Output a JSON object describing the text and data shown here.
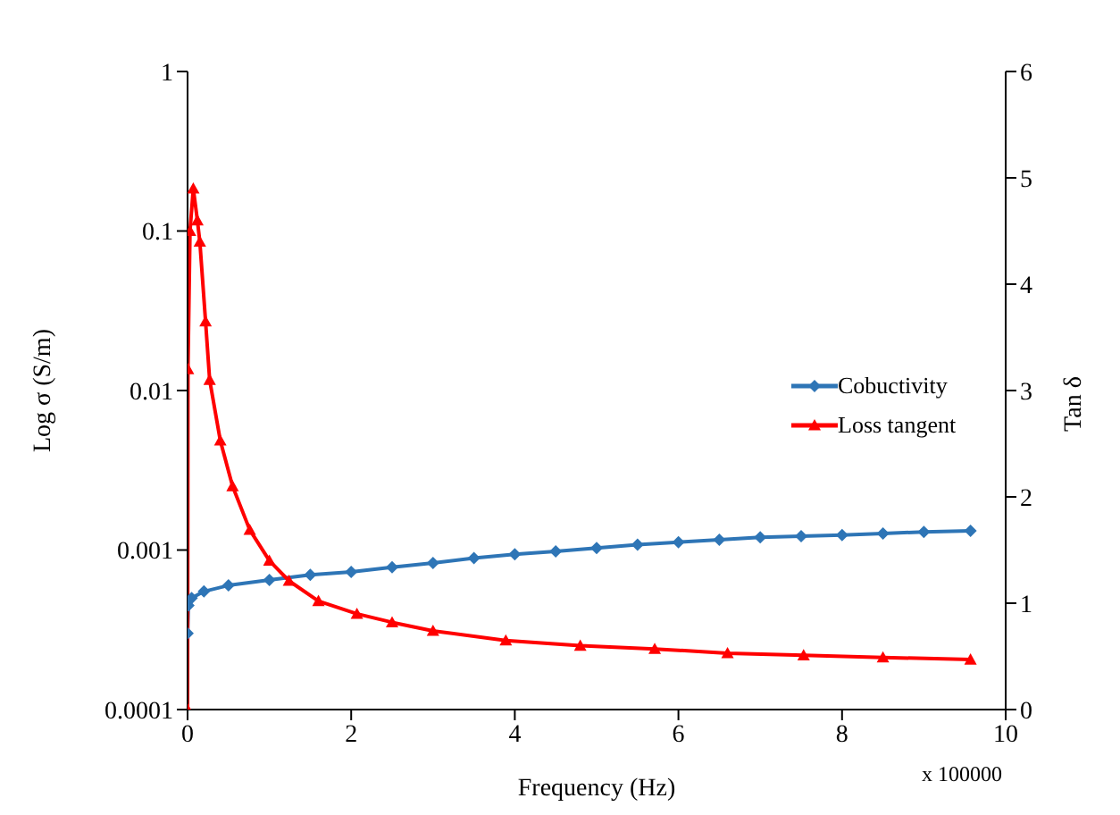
{
  "chart_data": {
    "type": "line",
    "xlabel": "Frequency (Hz)",
    "ylabel": "Log σ (S/m)",
    "y2label": "Tan δ",
    "annotations": [
      "x 100000"
    ],
    "xlim": [
      0,
      10
    ],
    "xticks": [
      0,
      2,
      4,
      6,
      8,
      10
    ],
    "ylim": [
      0.0001,
      1
    ],
    "yticks": [
      0.0001,
      0.001,
      0.01,
      0.1,
      1
    ],
    "log": true,
    "y2lim": [
      0,
      6
    ],
    "y2ticks": [
      0,
      1,
      2,
      3,
      4,
      5,
      6
    ],
    "grid": false,
    "legend": "right",
    "line_style": "solid",
    "series": [
      {
        "name": "Cobuctivity",
        "color": "#2e75b6",
        "marker": "diamond",
        "x": [
          0,
          0.01,
          0.05,
          0.2,
          0.5,
          1,
          1.5,
          2,
          2.5,
          3,
          3.5,
          4,
          4.5,
          5,
          5.5,
          6,
          6.5,
          7,
          7.5,
          8,
          8.5,
          9,
          9.57
        ],
        "values": [
          0.0003,
          0.00045,
          0.0005,
          0.00055,
          0.0006,
          0.00065,
          0.0007,
          0.00073,
          0.00078,
          0.00083,
          0.00089,
          0.00094,
          0.00098,
          0.00103,
          0.00108,
          0.00112,
          0.00116,
          0.0012,
          0.00122,
          0.00124,
          0.00127,
          0.0013,
          0.00132
        ]
      },
      {
        "name": "Loss tangent",
        "color": "#ff0000",
        "marker": "triangle",
        "axis": "y2",
        "x": [
          0,
          0.005,
          0.03,
          0.07,
          0.12,
          0.15,
          0.22,
          0.27,
          0.4,
          0.55,
          0.76,
          1,
          1.24,
          1.6,
          2.07,
          2.5,
          3,
          3.89,
          4.8,
          5.71,
          6.6,
          7.53,
          8.5,
          9.57
        ],
        "values": [
          0,
          3.2,
          4.5,
          4.9,
          4.6,
          4.4,
          3.65,
          3.1,
          2.53,
          2.1,
          1.69,
          1.4,
          1.21,
          1.02,
          0.9,
          0.82,
          0.74,
          0.65,
          0.6,
          0.57,
          0.53,
          0.51,
          0.49,
          0.47
        ]
      }
    ]
  }
}
